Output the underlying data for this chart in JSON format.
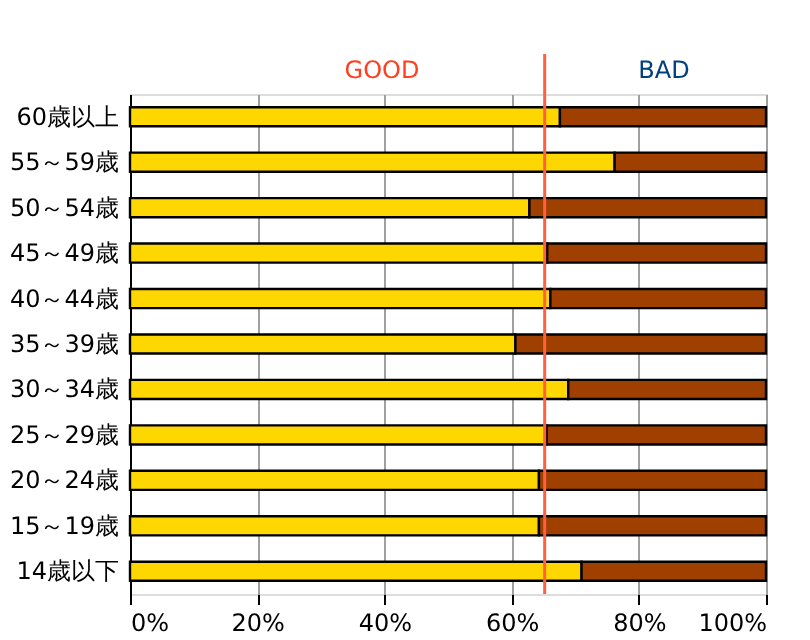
{
  "chart_data": {
    "type": "bar",
    "orientation": "horizontal",
    "stacked": true,
    "categories": [
      "60歳以上",
      "55～59歳",
      "50～54歳",
      "45～49歳",
      "40～44歳",
      "35～39歳",
      "30～34歳",
      "25～29歳",
      "20～24歳",
      "15～19歳",
      "14歳以下"
    ],
    "series": [
      {
        "color": "#ffd700",
        "values": [
          67.6,
          76.2,
          62.8,
          65.6,
          66.1,
          60.6,
          68.9,
          65.5,
          64.3,
          64.3,
          71.0
        ]
      },
      {
        "color": "#a04000",
        "values": [
          32.4,
          23.8,
          37.2,
          34.4,
          33.9,
          39.4,
          31.1,
          34.5,
          35.7,
          35.7,
          29.0
        ]
      }
    ],
    "xlim": [
      0,
      100
    ],
    "xticks": [
      {
        "value": 0,
        "label": "0%"
      },
      {
        "value": 20,
        "label": "20%"
      },
      {
        "value": 40,
        "label": "40%"
      },
      {
        "value": 60,
        "label": "60%"
      },
      {
        "value": 80,
        "label": "80%"
      },
      {
        "value": 100,
        "label": "100%"
      }
    ],
    "ref_lines": [
      {
        "axis": "x",
        "value": 65.2,
        "color": "#ff6040"
      }
    ],
    "annotations": [
      "GOOD",
      "BAD"
    ],
    "grid": "x"
  }
}
